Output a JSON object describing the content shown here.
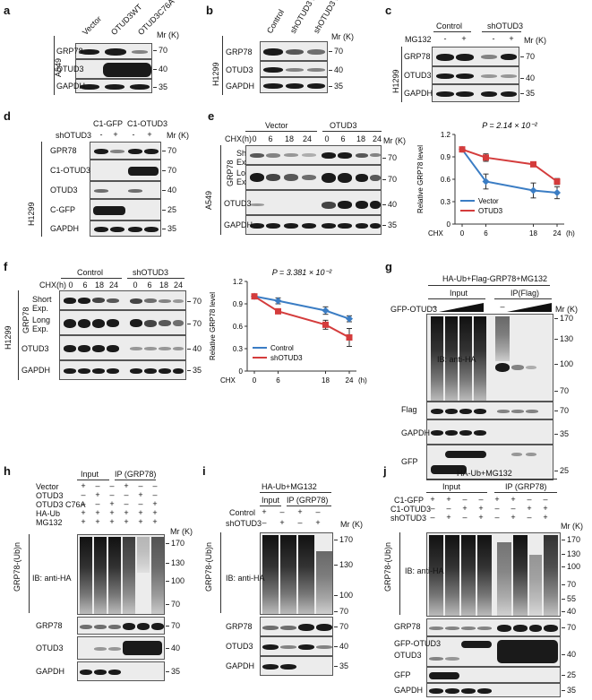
{
  "panels": {
    "a": {
      "label": "a",
      "cell": "A549",
      "lanes": [
        "Vector",
        "OTUD3WT",
        "OTUD3C76A"
      ],
      "blots": [
        "GRP78",
        "OTUD3",
        "GAPDH"
      ],
      "mw": [
        "70",
        "40",
        "35"
      ],
      "mr": "Mr (K)"
    },
    "b": {
      "label": "b",
      "cell": "H1299",
      "lanes": [
        "Control",
        "shOTUD3 #1",
        "shOTUD3 #2"
      ],
      "blots": [
        "GRP78",
        "OTUD3",
        "GAPDH"
      ],
      "mw": [
        "70",
        "40",
        "35"
      ],
      "mr": "Mr (K)"
    },
    "c": {
      "label": "c",
      "cell": "H1299",
      "groups": [
        "Control",
        "shOTUD3"
      ],
      "mg132": "MG132",
      "pm": [
        "-",
        "+",
        "-",
        "+"
      ],
      "blots": [
        "GRP78",
        "OTUD3",
        "GAPDH"
      ],
      "mw": [
        "70",
        "40",
        "35"
      ],
      "mr": "Mr (K)"
    },
    "d": {
      "label": "d",
      "cell": "H1299",
      "groups": [
        "C1-GFP",
        "C1-OTUD3"
      ],
      "sh": "shOTUD3",
      "pm": [
        "-",
        "+",
        "-",
        "+"
      ],
      "blots": [
        "GPR78",
        "C1-OTUD3",
        "OTUD3",
        "C-GFP",
        "GAPDH"
      ],
      "mw": [
        "70",
        "70",
        "40",
        "25",
        "35"
      ],
      "mr": "Mr (K)"
    },
    "e": {
      "label": "e",
      "cell": "A549",
      "groups": [
        "Vector",
        "OTUD3"
      ],
      "chx": "CHX(h)",
      "times": [
        "0",
        "6",
        "18",
        "24",
        "0",
        "6",
        "18",
        "24"
      ],
      "grp78": "GRP78",
      "exp_short": "Short Exp.",
      "exp_long": "Long Exp.",
      "blots": [
        "OTUD3",
        "GAPDH"
      ],
      "mw": [
        "70",
        "70",
        "40",
        "35"
      ],
      "mr": "Mr (K)"
    },
    "f": {
      "label": "f",
      "cell": "H1299",
      "groups": [
        "Control",
        "shOTUD3"
      ],
      "chx": "CHX(h)",
      "times": [
        "0",
        "6",
        "18",
        "24",
        "0",
        "6",
        "18",
        "24"
      ],
      "grp78": "GRP78",
      "exp_short": "Short Exp.",
      "exp_long": "Long Exp.",
      "blots": [
        "OTUD3",
        "GAPDH"
      ],
      "mw": [
        "70",
        "70",
        "40",
        "35"
      ],
      "mr": "Mr (K)"
    },
    "g": {
      "label": "g",
      "header": "HA-Ub+Flag-GRP78+MG132",
      "groups": [
        "Input",
        "IP(Flag)"
      ],
      "gfp": "GFP-OTUD3",
      "dash": "–",
      "ib": "IB: anti-HA",
      "blots": [
        "Flag",
        "GAPDH",
        "GFP"
      ],
      "mw": [
        "170",
        "130",
        "100",
        "70",
        "70",
        "35",
        "25"
      ],
      "mr": "Mr (K)"
    },
    "h": {
      "label": "h",
      "groups": [
        "Input",
        "IP (GRP78)"
      ],
      "rows": [
        "Vector",
        "OTUD3",
        "OTUD3 C76A",
        "HA-Ub",
        "MG132"
      ],
      "signs": [
        [
          "+",
          "–",
          "–",
          "+",
          "–",
          "–"
        ],
        [
          "–",
          "+",
          "–",
          "–",
          "+",
          "–"
        ],
        [
          "–",
          "–",
          "+",
          "–",
          "–",
          "+"
        ],
        [
          "+",
          "+",
          "+",
          "+",
          "+",
          "+"
        ],
        [
          "+",
          "+",
          "+",
          "+",
          "+",
          "+"
        ]
      ],
      "side": "GRP78-(Ub)n",
      "ib": "IB: anti-HA",
      "blots": [
        "GRP78",
        "OTUD3",
        "GAPDH"
      ],
      "mw": [
        "170",
        "130",
        "100",
        "70",
        "70",
        "40",
        "35"
      ],
      "mr": "Mr (K)"
    },
    "i": {
      "label": "i",
      "header": "HA-Ub+MG132",
      "groups": [
        "Input",
        "IP (GRP78)"
      ],
      "rows": [
        "Control",
        "shOTUD3"
      ],
      "signs": [
        [
          "+",
          "–",
          "+",
          "–"
        ],
        [
          "–",
          "+",
          "–",
          "+"
        ]
      ],
      "side": "GRP78-(Ub)n",
      "ib": "IB: anti-HA",
      "blots": [
        "GRP78",
        "OTUD3",
        "GAPDH"
      ],
      "mw": [
        "170",
        "130",
        "100",
        "70",
        "70",
        "40",
        "35"
      ],
      "mr": "Mr (K)"
    },
    "j": {
      "label": "j",
      "header": "HA-Ub+MG132",
      "groups": [
        "Input",
        "IP (GRP78)"
      ],
      "rows": [
        "C1-GFP",
        "C1-OTUD3",
        "shOTUD3"
      ],
      "signs": [
        [
          "+",
          "+",
          "–",
          "–",
          "+",
          "+",
          "–",
          "–"
        ],
        [
          "–",
          "–",
          "+",
          "+",
          "–",
          "–",
          "+",
          "+"
        ],
        [
          "–",
          "+",
          "–",
          "+",
          "–",
          "+",
          "–",
          "+"
        ]
      ],
      "side": "GRP78-(Ub)n",
      "ib": "IB: anti-HA",
      "blots": [
        "GRP78",
        "GFP-OTUD3",
        "OTUD3",
        "GFP",
        "GAPDH"
      ],
      "mw": [
        "170",
        "130",
        "100",
        "70",
        "55",
        "40",
        "70",
        "40",
        "25",
        "35"
      ],
      "mr": "Mr (K)"
    }
  },
  "chart_data": [
    {
      "type": "line",
      "panel": "e",
      "title": "P = 2.14 × 10⁻²",
      "xlabel": "CHX",
      "x_unit": "(h)",
      "ylabel": "Relative GRP78 level",
      "x": [
        0,
        6,
        18,
        24
      ],
      "xticks": [
        "0",
        "6",
        "18",
        "24"
      ],
      "yticks": [
        "0",
        "0.3",
        "0.6",
        "0.9",
        "1.2"
      ],
      "ylim": [
        0,
        1.2
      ],
      "series": [
        {
          "name": "Vector",
          "color": "#3b7dc4",
          "marker": "diamond",
          "values": [
            1.0,
            0.57,
            0.45,
            0.42
          ],
          "err": [
            0.0,
            0.1,
            0.1,
            0.08
          ]
        },
        {
          "name": "OTUD3",
          "color": "#d43c3c",
          "marker": "square",
          "values": [
            1.0,
            0.89,
            0.8,
            0.57
          ],
          "err": [
            0.0,
            0.05,
            0.03,
            0.04
          ]
        }
      ],
      "legend": "bottom-left"
    },
    {
      "type": "line",
      "panel": "f",
      "title": "P = 3.381 × 10⁻²",
      "xlabel": "CHX",
      "x_unit": "(h)",
      "ylabel": "Relative GRP78 level",
      "x": [
        0,
        6,
        18,
        24
      ],
      "xticks": [
        "0",
        "6",
        "18",
        "24"
      ],
      "yticks": [
        "0",
        "0.3",
        "0.6",
        "0.9",
        "1.2"
      ],
      "ylim": [
        0,
        1.2
      ],
      "series": [
        {
          "name": "Control",
          "color": "#3b7dc4",
          "marker": "diamond",
          "values": [
            1.0,
            0.94,
            0.81,
            0.7
          ],
          "err": [
            0.0,
            0.04,
            0.05,
            0.04
          ]
        },
        {
          "name": "shOTUD3",
          "color": "#d43c3c",
          "marker": "square",
          "values": [
            1.0,
            0.8,
            0.62,
            0.45
          ],
          "err": [
            0.0,
            0.03,
            0.06,
            0.12
          ]
        }
      ],
      "legend": "bottom-left"
    }
  ]
}
